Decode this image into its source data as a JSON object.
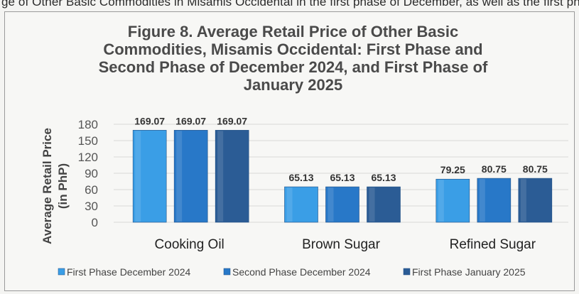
{
  "page_top_text": "ge of Other Basic Commodities in Misamis Occidental in the first phase of December, as well as the first phase of January",
  "chart_data": {
    "type": "bar",
    "title": "Figure 8. Average Retail Price of Other Basic Commodities, Misamis Occidental: First Phase and Second Phase of December 2024, and First Phase of January 2025",
    "xlabel": "",
    "ylabel": "Average Retail Price (in PhP)",
    "ylabel_lines": [
      "Average Retail Price",
      "(in PhP)"
    ],
    "ylim": [
      0,
      180
    ],
    "yticks": [
      0,
      30,
      60,
      90,
      120,
      150,
      180
    ],
    "grid": true,
    "legend_position": "bottom",
    "categories": [
      "Cooking Oil",
      "Brown Sugar",
      "Refined Sugar"
    ],
    "series": [
      {
        "name": "First Phase December 2024",
        "values": [
          169.07,
          65.13,
          79.25
        ],
        "color": "#3a9ee6"
      },
      {
        "name": "Second Phase December 2024",
        "values": [
          169.07,
          65.13,
          80.75
        ],
        "color": "#2878c8"
      },
      {
        "name": "First Phase January 2025",
        "values": [
          169.07,
          65.13,
          80.75
        ],
        "color": "#2b5c95"
      }
    ]
  }
}
